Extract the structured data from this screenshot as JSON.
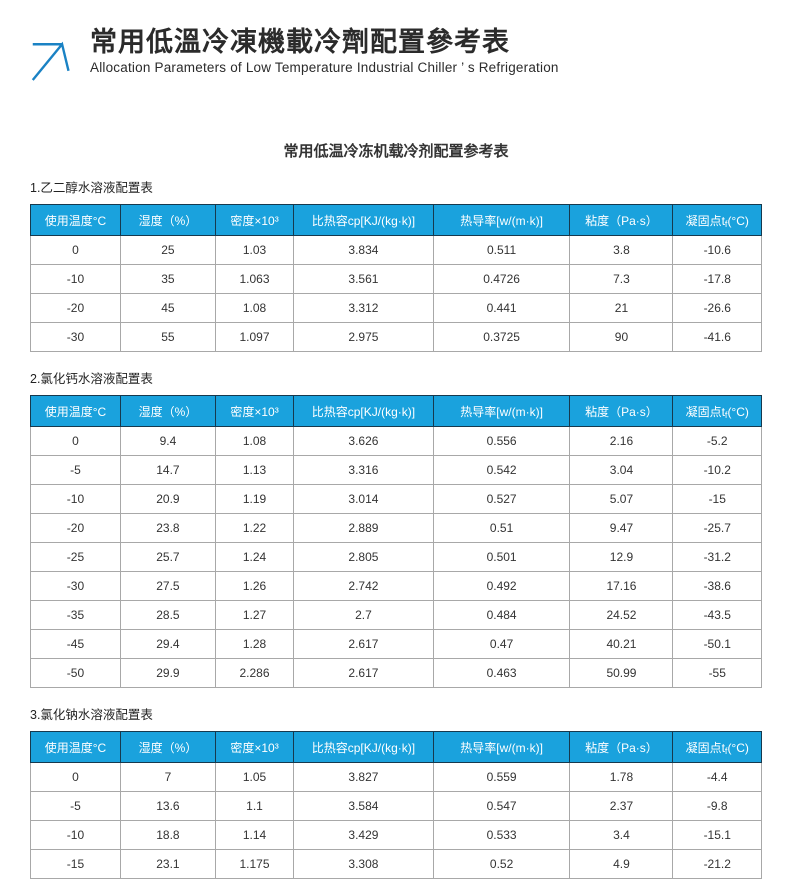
{
  "header": {
    "title": "常用低溫冷凍機載冷劑配置參考表",
    "subtitle": "Allocation Parameters of Low Temperature Industrial Chiller ’ s Refrigeration",
    "logo_color": "#1a82c4"
  },
  "document_title": "常用低温冷冻机载冷剂配置参考表",
  "colors": {
    "table_header_bg": "#1aa2dd",
    "table_header_text": "#ffffff",
    "table_header_border": "#16394e",
    "table_body_border": "#a8a8a8"
  },
  "table_headers": {
    "temp": "使用温度°C",
    "humidity": "湿度（%）",
    "density": "密度×10³",
    "heat_capacity": "比热容cp[KJ/(kg·k)]",
    "conductivity": "热导率[w/(m·k)]",
    "viscosity": "粘度（Pa·s）",
    "freezing_pre": "凝固点t",
    "freezing_sub": "f",
    "freezing_post": "(°C)"
  },
  "sections": [
    {
      "title": "1.乙二醇水溶液配置表",
      "rows": [
        [
          "0",
          "25",
          "1.03",
          "3.834",
          "0.511",
          "3.8",
          "-10.6"
        ],
        [
          "-10",
          "35",
          "1.063",
          "3.561",
          "0.4726",
          "7.3",
          "-17.8"
        ],
        [
          "-20",
          "45",
          "1.08",
          "3.312",
          "0.441",
          "21",
          "-26.6"
        ],
        [
          "-30",
          "55",
          "1.097",
          "2.975",
          "0.3725",
          "90",
          "-41.6"
        ]
      ]
    },
    {
      "title": "2.氯化钙水溶液配置表",
      "rows": [
        [
          "0",
          "9.4",
          "1.08",
          "3.626",
          "0.556",
          "2.16",
          "-5.2"
        ],
        [
          "-5",
          "14.7",
          "1.13",
          "3.316",
          "0.542",
          "3.04",
          "-10.2"
        ],
        [
          "-10",
          "20.9",
          "1.19",
          "3.014",
          "0.527",
          "5.07",
          "-15"
        ],
        [
          "-20",
          "23.8",
          "1.22",
          "2.889",
          "0.51",
          "9.47",
          "-25.7"
        ],
        [
          "-25",
          "25.7",
          "1.24",
          "2.805",
          "0.501",
          "12.9",
          "-31.2"
        ],
        [
          "-30",
          "27.5",
          "1.26",
          "2.742",
          "0.492",
          "17.16",
          "-38.6"
        ],
        [
          "-35",
          "28.5",
          "1.27",
          "2.7",
          "0.484",
          "24.52",
          "-43.5"
        ],
        [
          "-45",
          "29.4",
          "1.28",
          "2.617",
          "0.47",
          "40.21",
          "-50.1"
        ],
        [
          "-50",
          "29.9",
          "2.286",
          "2.617",
          "0.463",
          "50.99",
          "-55"
        ]
      ]
    },
    {
      "title": "3.氯化钠水溶液配置表",
      "rows": [
        [
          "0",
          "7",
          "1.05",
          "3.827",
          "0.559",
          "1.78",
          "-4.4"
        ],
        [
          "-5",
          "13.6",
          "1.1",
          "3.584",
          "0.547",
          "2.37",
          "-9.8"
        ],
        [
          "-10",
          "18.8",
          "1.14",
          "3.429",
          "0.533",
          "3.4",
          "-15.1"
        ],
        [
          "-15",
          "23.1",
          "1.175",
          "3.308",
          "0.52",
          "4.9",
          "-21.2"
        ]
      ]
    }
  ]
}
